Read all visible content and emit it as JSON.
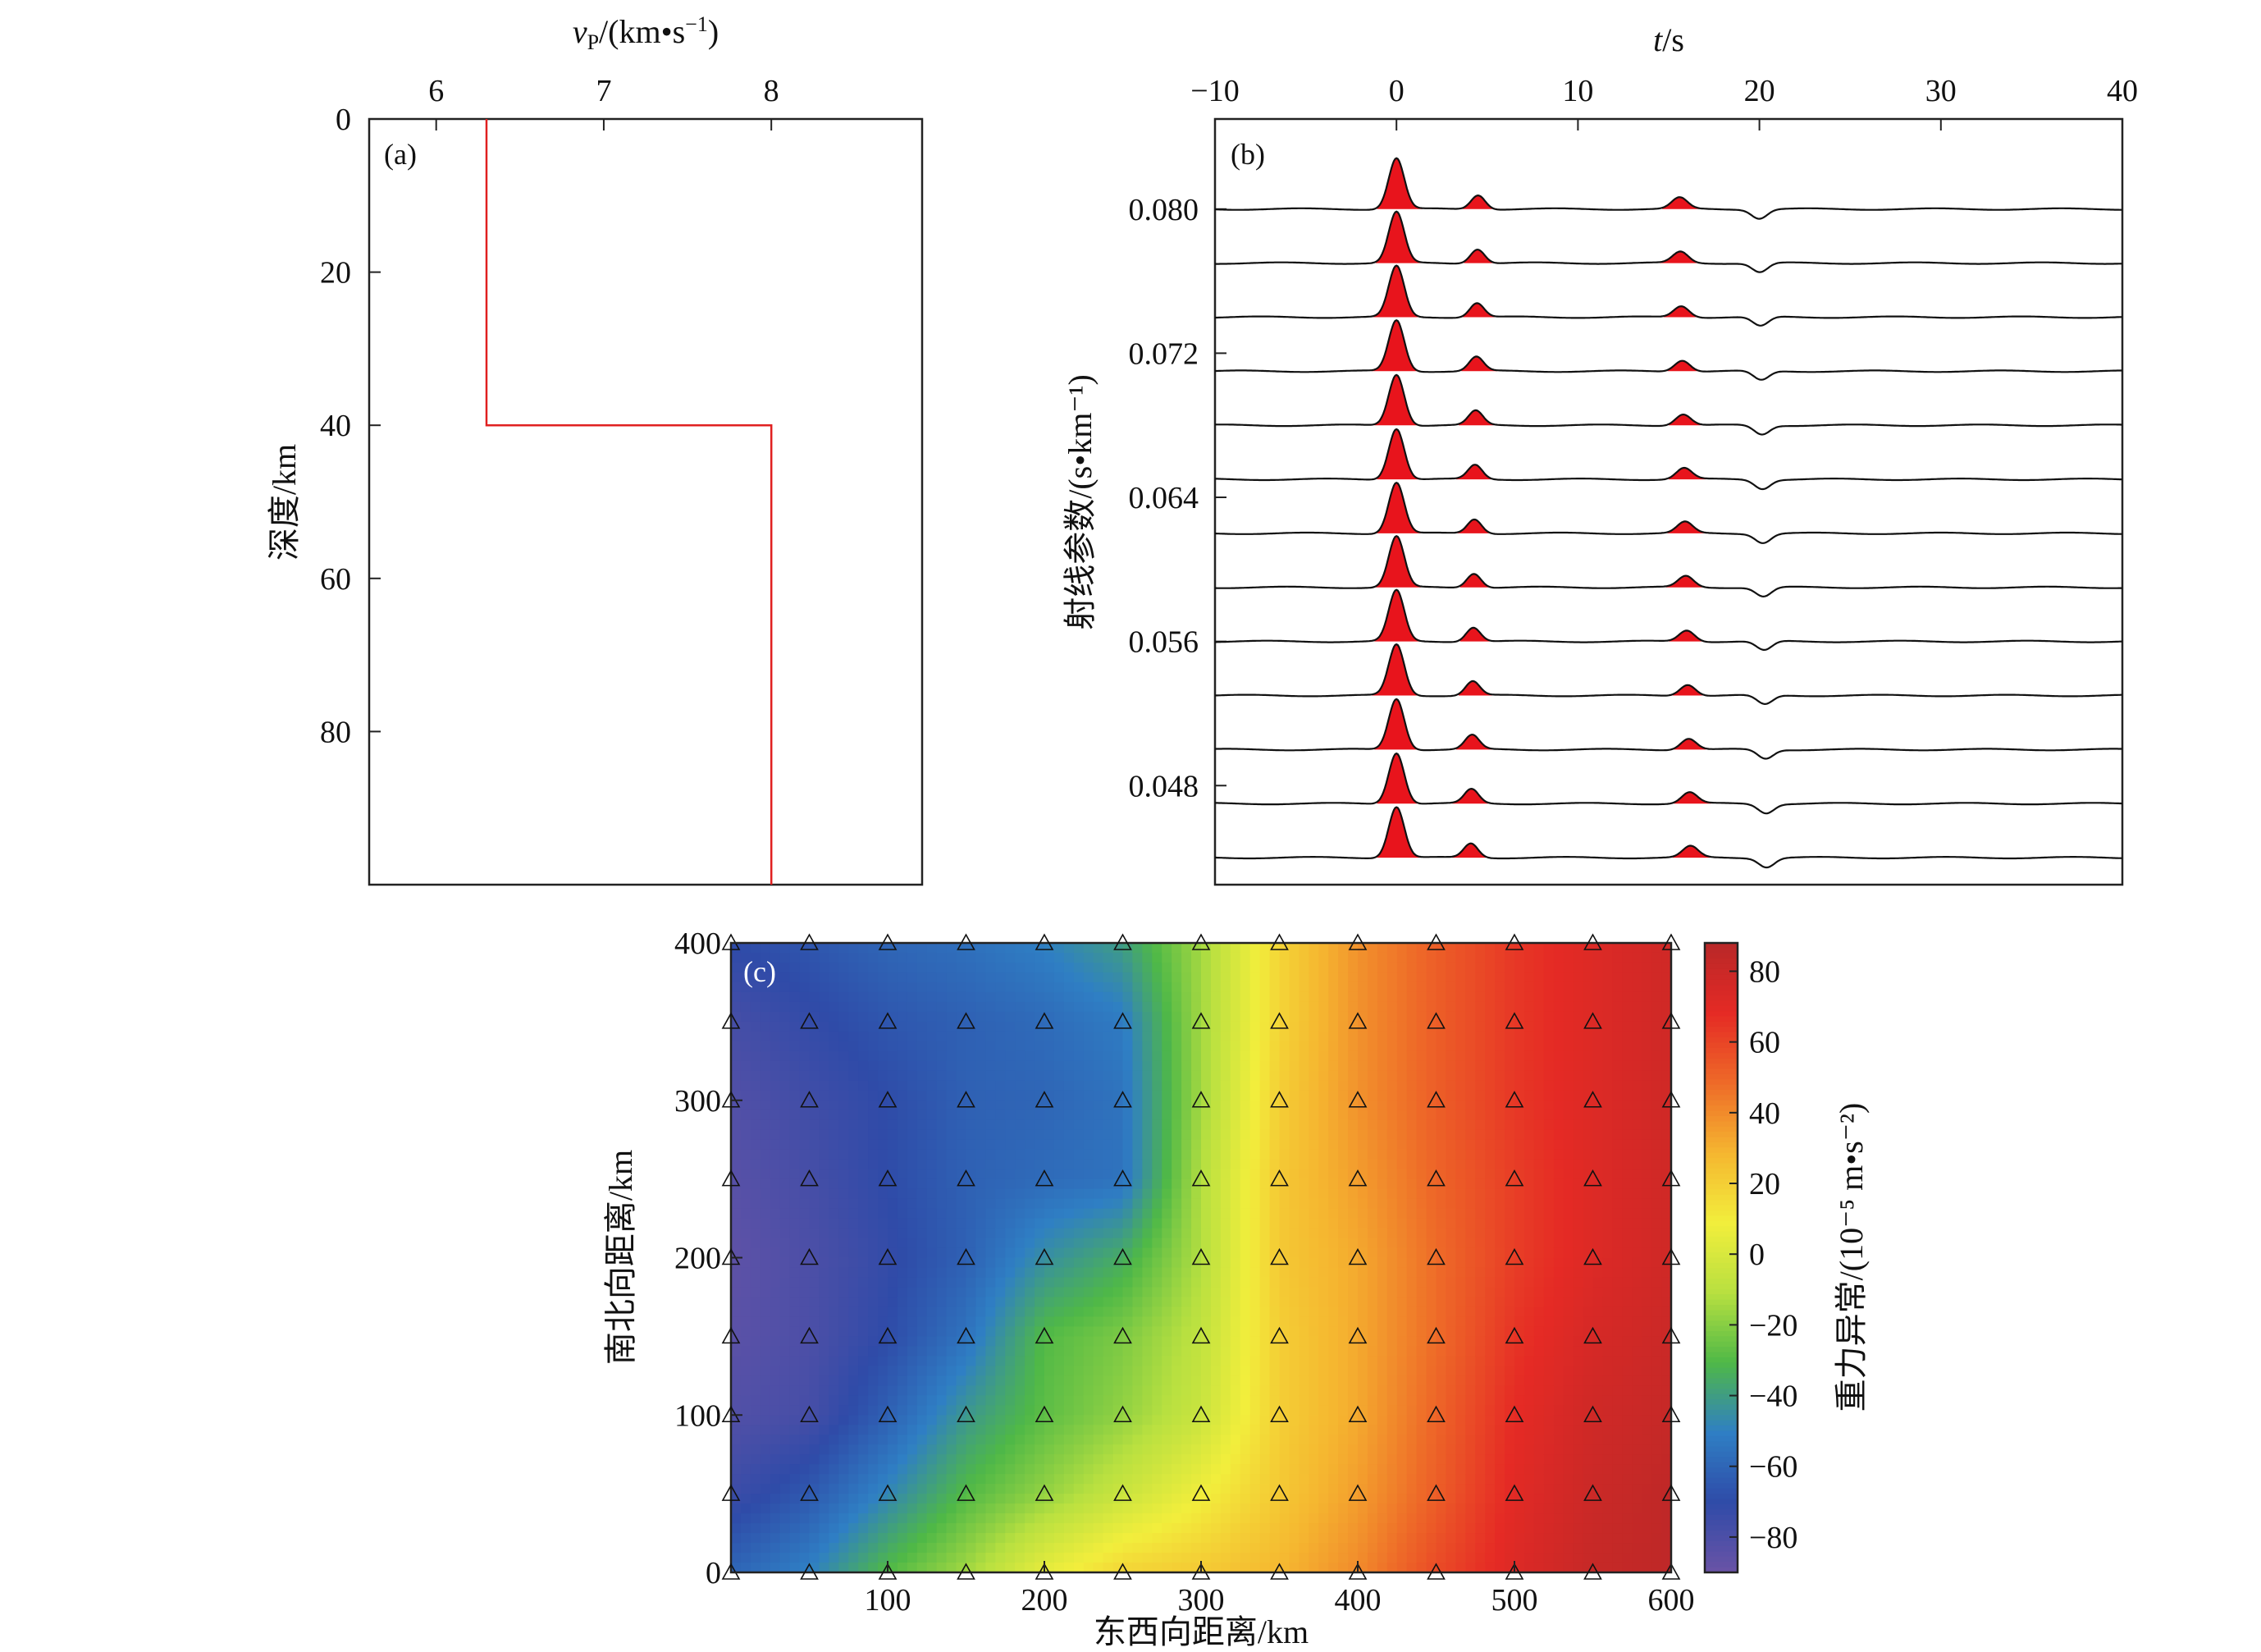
{
  "chart_data": [
    {
      "panel": "(a)",
      "type": "line",
      "xlabel": {
        "v": "v",
        "sub": "P",
        "rest": "/(km•s",
        "sup": "−1",
        "end": ")"
      },
      "ylabel": "深度/km",
      "x_ticks": [
        6,
        7,
        8
      ],
      "y_ticks": [
        0,
        20,
        40,
        60,
        80
      ],
      "xlim": [
        5.6,
        8.9
      ],
      "ylim": [
        0,
        100
      ],
      "y_inverted": true,
      "color": "#e02020",
      "x": [
        6.3,
        6.3,
        8.0,
        8.0
      ],
      "y": [
        0,
        40,
        40,
        100
      ]
    },
    {
      "panel": "(b)",
      "type": "line",
      "xlabel": {
        "t": "t",
        "rest": "/s"
      },
      "ylabel": "射线参数/(s•km⁻¹)",
      "x_ticks": [
        -10,
        0,
        10,
        20,
        30,
        40
      ],
      "x_tick_labels": [
        "−10",
        "0",
        "10",
        "20",
        "30",
        "40"
      ],
      "y_tick_labels": [
        "0.080",
        "0.072",
        "0.064",
        "0.056",
        "0.048"
      ],
      "y_tick_values": [
        0.08,
        0.072,
        0.064,
        0.056,
        0.048
      ],
      "xlim": [
        -10,
        40
      ],
      "ylim": [
        0.0425,
        0.085
      ],
      "fill_color": "#e8141c",
      "ray_parameters": [
        0.08,
        0.077,
        0.074,
        0.071,
        0.068,
        0.065,
        0.062,
        0.059,
        0.056,
        0.053,
        0.05,
        0.047,
        0.044
      ],
      "phases": {
        "direct_P": {
          "time": 0.0,
          "amplitude": 1.0
        },
        "Ps_time_range": [
          4.5,
          4.1
        ],
        "Ps_amplitude": 0.28,
        "PpPs_time_range": [
          15.6,
          16.2
        ],
        "PpPs_amplitude": 0.22,
        "PpSs_time_range": [
          20.0,
          20.4
        ],
        "PpSs_amplitude": -0.18
      }
    },
    {
      "panel": "(c)",
      "type": "heatmap",
      "xlabel": "东西向距离/km",
      "ylabel": "南北向距离/km",
      "colorbar_label": "重力异常/(10⁻⁵ m•s⁻²)",
      "x_ticks": [
        100,
        200,
        300,
        400,
        500,
        600
      ],
      "y_ticks": [
        0,
        100,
        200,
        300,
        400
      ],
      "colorbar_ticks": [
        80,
        60,
        40,
        20,
        0,
        -20,
        -40,
        -60,
        -80
      ],
      "colorbar_tick_labels": [
        "80",
        "60",
        "40",
        "20",
        "0",
        "−20",
        "−40",
        "−60",
        "−80"
      ],
      "xlim": [
        0,
        600
      ],
      "ylim": [
        0,
        400
      ],
      "clim": [
        -90,
        88
      ],
      "colormap": [
        "#6a53a6",
        "#2f4ba8",
        "#2f7fc4",
        "#4fb847",
        "#b8e040",
        "#f2ee3c",
        "#f5b630",
        "#ee6a28",
        "#e52a25",
        "#b82828"
      ],
      "station_marker": "open-triangle",
      "station_x": [
        0,
        50,
        100,
        150,
        200,
        250,
        300,
        350,
        400,
        450,
        500,
        550,
        600
      ],
      "station_y": [
        0,
        50,
        100,
        150,
        200,
        250,
        300,
        350,
        400
      ],
      "grid_x": [
        0,
        50,
        100,
        150,
        200,
        250,
        300,
        350,
        400,
        450,
        500,
        550,
        600
      ],
      "grid_y": [
        0,
        50,
        100,
        150,
        200,
        250,
        300,
        350,
        400
      ],
      "values": [
        [
          -60,
          -50,
          -30,
          -15,
          5,
          18,
          22,
          28,
          40,
          58,
          72,
          82,
          85
        ],
        [
          -75,
          -65,
          -48,
          -30,
          -18,
          -5,
          8,
          22,
          35,
          52,
          70,
          80,
          85
        ],
        [
          -82,
          -78,
          -62,
          -42,
          -28,
          -18,
          -5,
          20,
          32,
          50,
          68,
          78,
          82
        ],
        [
          -85,
          -80,
          -70,
          -55,
          -30,
          -22,
          -8,
          20,
          32,
          48,
          65,
          75,
          80
        ],
        [
          -86,
          -80,
          -72,
          -62,
          -45,
          -35,
          -12,
          22,
          32,
          48,
          62,
          72,
          78
        ],
        [
          -84,
          -78,
          -70,
          -62,
          -58,
          -55,
          -12,
          22,
          35,
          50,
          62,
          72,
          78
        ],
        [
          -82,
          -76,
          -70,
          -62,
          -60,
          -55,
          -15,
          20,
          38,
          52,
          64,
          72,
          78
        ],
        [
          -78,
          -72,
          -66,
          -62,
          -58,
          -52,
          -15,
          18,
          38,
          52,
          64,
          72,
          78
        ],
        [
          -70,
          -66,
          -60,
          -56,
          -50,
          -40,
          -15,
          18,
          38,
          52,
          64,
          72,
          78
        ]
      ]
    }
  ]
}
